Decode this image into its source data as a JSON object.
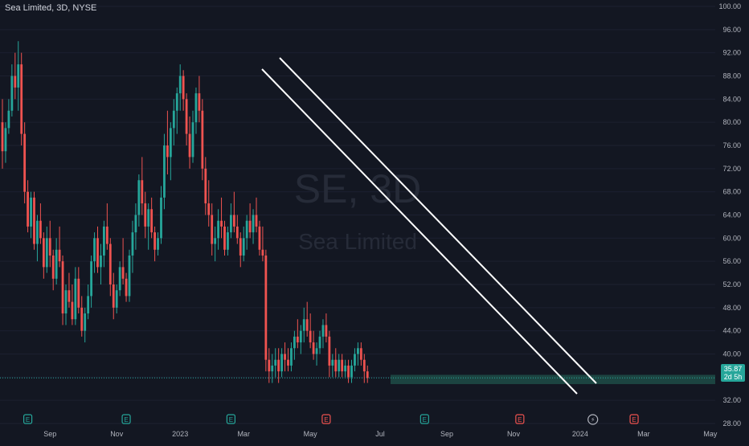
{
  "header": {
    "symbol_title": "Sea Limited, 3D, NYSE"
  },
  "watermark": {
    "line1": "SE, 3D",
    "line2": "Sea Limited"
  },
  "colors": {
    "background": "#131722",
    "up": "#26a69a",
    "down": "#ef5350",
    "axis_text": "#b2b5be",
    "price_label_bg": "#26a69a",
    "trendline": "#ffffff",
    "support_zone": "#1f4c47"
  },
  "price_label": {
    "price": "35.87",
    "countdown": "2d 5h"
  },
  "events": [
    {
      "type": "earnings",
      "letter": "E",
      "color": "#26a69a",
      "x_index": 8
    },
    {
      "type": "earnings",
      "letter": "E",
      "color": "#26a69a",
      "x_index": 39
    },
    {
      "type": "earnings",
      "letter": "E",
      "color": "#26a69a",
      "x_index": 72
    },
    {
      "type": "earnings",
      "letter": "E",
      "color": "#ef5350",
      "x_index": 102
    },
    {
      "type": "earnings",
      "letter": "E",
      "color": "#26a69a",
      "x_index": 133
    },
    {
      "type": "earnings",
      "letter": "E",
      "color": "#ef5350",
      "x_index": 163
    },
    {
      "type": "split",
      "letter": "⚡",
      "color": "#b2b5be",
      "x_index": 186
    },
    {
      "type": "earnings",
      "letter": "E",
      "color": "#ef5350",
      "x_index": 199
    }
  ],
  "chart_data": {
    "type": "candlestick",
    "title": "Sea Limited, 3D, NYSE",
    "ylim": [
      28,
      100
    ],
    "y_ticks": [
      "100.00",
      "96.00",
      "92.00",
      "88.00",
      "84.00",
      "80.00",
      "76.00",
      "72.00",
      "68.00",
      "64.00",
      "60.00",
      "56.00",
      "52.00",
      "48.00",
      "44.00",
      "40.00",
      "36.00",
      "32.00",
      "28.00"
    ],
    "x_ticks": [
      {
        "label": "Sep",
        "index": 15
      },
      {
        "label": "Nov",
        "index": 36
      },
      {
        "label": "2023",
        "index": 56
      },
      {
        "label": "Mar",
        "index": 76
      },
      {
        "label": "May",
        "index": 97
      },
      {
        "label": "Jul",
        "index": 119
      },
      {
        "label": "Sep",
        "index": 140
      },
      {
        "label": "Nov",
        "index": 161
      },
      {
        "label": "2024",
        "index": 182
      },
      {
        "label": "Mar",
        "index": 202
      },
      {
        "label": "May",
        "index": 223
      }
    ],
    "last_price": 35.87,
    "ohlc": [
      [
        80,
        84,
        72,
        75
      ],
      [
        75,
        80,
        73,
        79
      ],
      [
        79,
        84,
        78,
        82
      ],
      [
        82,
        90,
        81,
        88
      ],
      [
        88,
        92,
        84,
        86
      ],
      [
        86,
        94,
        82,
        90
      ],
      [
        90,
        92,
        76,
        78
      ],
      [
        78,
        80,
        66,
        68
      ],
      [
        68,
        70,
        61,
        62
      ],
      [
        62,
        68,
        60,
        67
      ],
      [
        67,
        68,
        58,
        59
      ],
      [
        59,
        64,
        56,
        63
      ],
      [
        63,
        66,
        59,
        60
      ],
      [
        60,
        61,
        53,
        55
      ],
      [
        55,
        62,
        54,
        60
      ],
      [
        60,
        63,
        55,
        57
      ],
      [
        57,
        58,
        51,
        53
      ],
      [
        53,
        60,
        52,
        58
      ],
      [
        58,
        62,
        55,
        56
      ],
      [
        56,
        57,
        45,
        47
      ],
      [
        47,
        52,
        45,
        51
      ],
      [
        51,
        54,
        48,
        49
      ],
      [
        49,
        52,
        45,
        46
      ],
      [
        46,
        55,
        45,
        53
      ],
      [
        53,
        55,
        47,
        48
      ],
      [
        48,
        50,
        43,
        44
      ],
      [
        44,
        48,
        42,
        47
      ],
      [
        47,
        52,
        46,
        50
      ],
      [
        50,
        57,
        48,
        56
      ],
      [
        56,
        61,
        54,
        60
      ],
      [
        60,
        62,
        54,
        55
      ],
      [
        55,
        59,
        52,
        57
      ],
      [
        57,
        63,
        55,
        62
      ],
      [
        62,
        66,
        58,
        59
      ],
      [
        59,
        60,
        50,
        52
      ],
      [
        52,
        54,
        46,
        48
      ],
      [
        48,
        52,
        47,
        51
      ],
      [
        51,
        56,
        50,
        55
      ],
      [
        55,
        60,
        52,
        53
      ],
      [
        53,
        54,
        49,
        50
      ],
      [
        50,
        58,
        49,
        57
      ],
      [
        57,
        63,
        54,
        61
      ],
      [
        61,
        66,
        58,
        64
      ],
      [
        64,
        71,
        62,
        70
      ],
      [
        70,
        74,
        64,
        66
      ],
      [
        66,
        68,
        60,
        62
      ],
      [
        62,
        66,
        58,
        65
      ],
      [
        65,
        67,
        60,
        61
      ],
      [
        61,
        62,
        56,
        58
      ],
      [
        58,
        61,
        57,
        60
      ],
      [
        60,
        69,
        59,
        67
      ],
      [
        67,
        78,
        65,
        76
      ],
      [
        76,
        82,
        71,
        74
      ],
      [
        74,
        80,
        70,
        79
      ],
      [
        79,
        84,
        76,
        82
      ],
      [
        82,
        86,
        78,
        85
      ],
      [
        85,
        90,
        82,
        88
      ],
      [
        88,
        89,
        82,
        84
      ],
      [
        84,
        85,
        76,
        78
      ],
      [
        78,
        81,
        72,
        74
      ],
      [
        74,
        82,
        73,
        80
      ],
      [
        80,
        86,
        78,
        85
      ],
      [
        85,
        88,
        80,
        82
      ],
      [
        82,
        84,
        70,
        72
      ],
      [
        72,
        74,
        64,
        66
      ],
      [
        66,
        70,
        62,
        64
      ],
      [
        64,
        66,
        57,
        59
      ],
      [
        59,
        62,
        56,
        60
      ],
      [
        60,
        65,
        58,
        63
      ],
      [
        63,
        67,
        60,
        62
      ],
      [
        62,
        63,
        57,
        58
      ],
      [
        58,
        62,
        57,
        61
      ],
      [
        61,
        66,
        60,
        64
      ],
      [
        64,
        68,
        61,
        62
      ],
      [
        62,
        64,
        59,
        60
      ],
      [
        60,
        61,
        55,
        57
      ],
      [
        57,
        62,
        56,
        60
      ],
      [
        60,
        64,
        58,
        63
      ],
      [
        63,
        66,
        60,
        61
      ],
      [
        61,
        65,
        59,
        64
      ],
      [
        64,
        67,
        61,
        62
      ],
      [
        62,
        63,
        57,
        58
      ],
      [
        58,
        62,
        56,
        57
      ],
      [
        57,
        58,
        37,
        39
      ],
      [
        39,
        41,
        35,
        37
      ],
      [
        37,
        40,
        35,
        38
      ],
      [
        38,
        41,
        36,
        39
      ],
      [
        39,
        41,
        35,
        37
      ],
      [
        37,
        41,
        36,
        40
      ],
      [
        40,
        42,
        37,
        39
      ],
      [
        39,
        41,
        37,
        38
      ],
      [
        38,
        42,
        37,
        41
      ],
      [
        41,
        44,
        39,
        43
      ],
      [
        43,
        46,
        41,
        42
      ],
      [
        42,
        45,
        40,
        44
      ],
      [
        44,
        48,
        42,
        46
      ],
      [
        46,
        49,
        43,
        44
      ],
      [
        44,
        47,
        41,
        42
      ],
      [
        42,
        44,
        39,
        40
      ],
      [
        40,
        42,
        38,
        41
      ],
      [
        41,
        44,
        40,
        43
      ],
      [
        43,
        46,
        41,
        45
      ],
      [
        45,
        47,
        42,
        43
      ],
      [
        43,
        44,
        36,
        38
      ],
      [
        38,
        40,
        36,
        39
      ],
      [
        39,
        41,
        36,
        37
      ],
      [
        37,
        40,
        36,
        39
      ],
      [
        39,
        40,
        36,
        37
      ],
      [
        37,
        39,
        36,
        38
      ],
      [
        38,
        39,
        35,
        36
      ],
      [
        36,
        39,
        35,
        38
      ],
      [
        38,
        41,
        37,
        40
      ],
      [
        40,
        42,
        38,
        41
      ],
      [
        41,
        42,
        38,
        39
      ],
      [
        39,
        40,
        35,
        37
      ],
      [
        37,
        38,
        35,
        35.87
      ]
    ]
  }
}
